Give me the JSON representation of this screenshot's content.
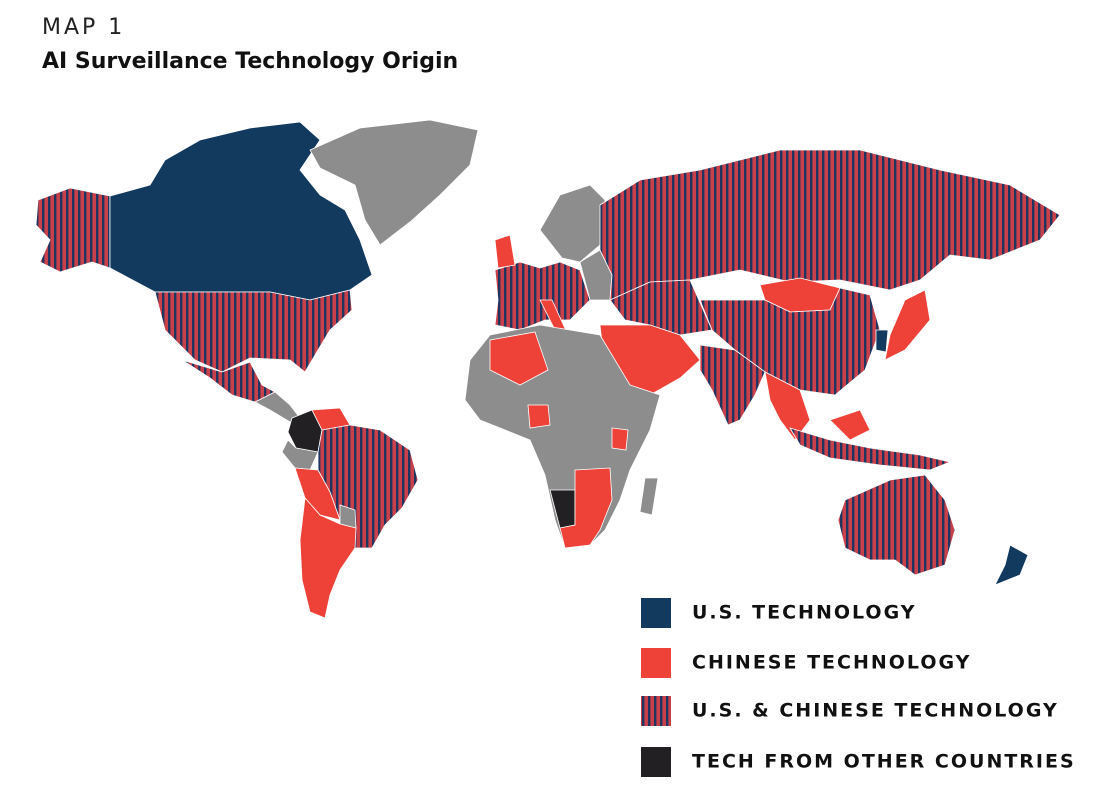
{
  "header": {
    "kicker": "MAP 1",
    "title": "AI Surveillance Technology Origin"
  },
  "legend": [
    {
      "label": "U.S. TECHNOLOGY",
      "color": "#123a5e"
    },
    {
      "label": "CHINESE TECHNOLOGY",
      "color": "#ee4138"
    },
    {
      "label": "U.S. & CHINESE TECHNOLOGY",
      "color": "#c8404a",
      "stripe": "#1f3560"
    },
    {
      "label": "TECH FROM OTHER COUNTRIES",
      "color": "#232024"
    }
  ],
  "no_data_color": "#8d8d8d"
}
